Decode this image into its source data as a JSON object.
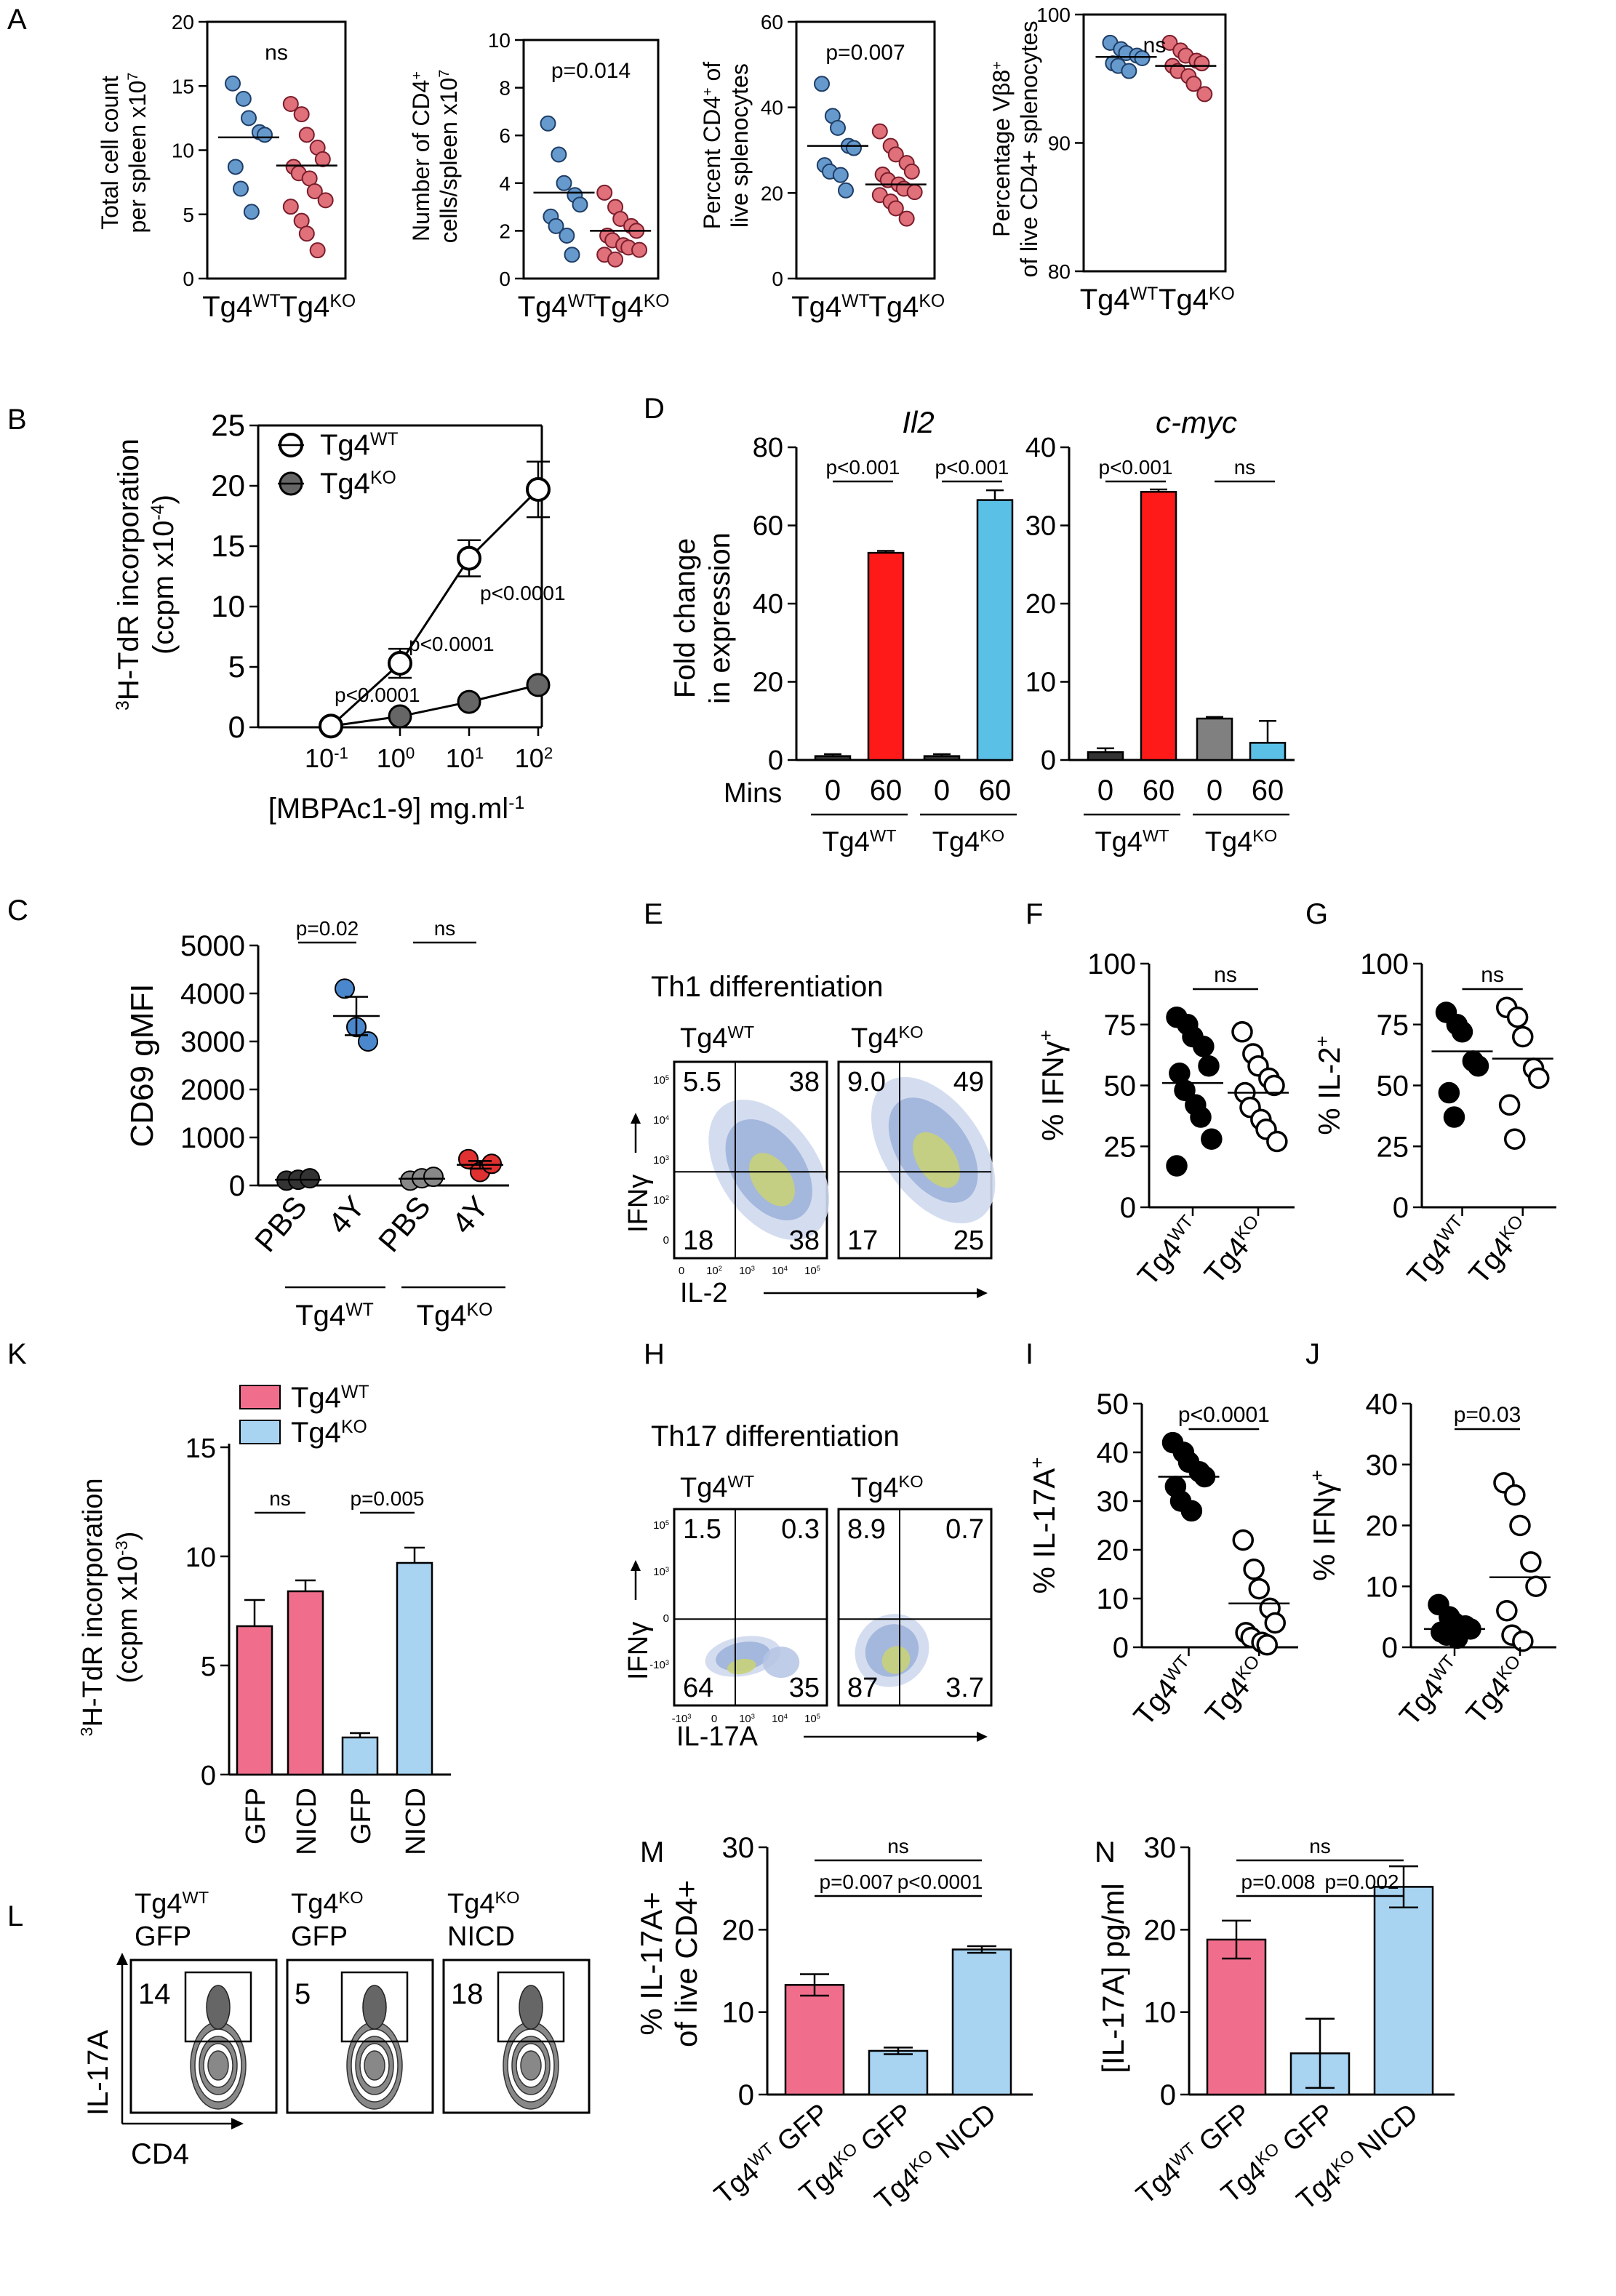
{
  "colors": {
    "wt_blue": "#6699cc",
    "ko_pink": "#e0707a",
    "red": "#ff1a1a",
    "cyan": "#5bc0e6",
    "gray": "#808080",
    "k_pink": "#f06e8c",
    "k_blue": "#a8d4f2",
    "scatter_blue": "#4a87cc",
    "scatter_red": "#e03030",
    "flow_bg": "#e7ecf6"
  },
  "panels": {
    "A": "A",
    "B": "B",
    "C": "C",
    "D": "D",
    "E": "E",
    "F": "F",
    "G": "G",
    "H": "H",
    "I": "I",
    "J": "J",
    "K": "K",
    "L": "L",
    "M": "M",
    "N": "N"
  },
  "groups": {
    "wt": "Tg4",
    "ko": "Tg4",
    "wt_sup": "WT",
    "ko_sup": "KO"
  },
  "panelA": {
    "y_ticks": [
      [
        "0",
        "5",
        "10",
        "15",
        "20"
      ],
      [
        "0",
        "2",
        "4",
        "6",
        "8",
        "10"
      ],
      [
        "0",
        "20",
        "40",
        "60"
      ],
      [
        "80",
        "90",
        "100"
      ]
    ],
    "stats": [
      "ns",
      "p=0.014",
      "p=0.007",
      "ns"
    ],
    "ylabels": [
      [
        "Total cell count",
        "per spleen x10"
      ],
      [
        "Number of CD4",
        "cells/spleen x10"
      ],
      [
        "Percent CD4",
        "of",
        "live splenocytes"
      ],
      [
        "Percentage Vβ8",
        "of live CD4+ splenocytes"
      ]
    ],
    "ylabel_sups": [
      "7",
      "+",
      "7",
      "+",
      "+"
    ],
    "exp7": "7"
  },
  "chart_data": [
    {
      "panel": "A1",
      "type": "scatter",
      "ylabel": "Total cell count per spleen x10^7",
      "ylim": [
        0,
        20
      ],
      "categories": [
        "Tg4WT",
        "Tg4KO"
      ],
      "series": [
        {
          "name": "Tg4WT",
          "values": [
            15.2,
            14.0,
            12.5,
            11.4,
            11.2,
            8.7,
            7.0,
            5.2
          ],
          "mean": 11.0
        },
        {
          "name": "Tg4KO",
          "values": [
            13.6,
            12.8,
            11.2,
            10.2,
            9.3,
            8.7,
            8.2,
            7.8,
            6.8,
            6.1,
            5.6,
            4.5,
            3.5,
            2.2
          ],
          "mean": 8.8
        }
      ],
      "annotation": "ns"
    },
    {
      "panel": "A2",
      "type": "scatter",
      "ylabel": "Number of CD4+ cells/spleen x10^7",
      "ylim": [
        0,
        10
      ],
      "categories": [
        "Tg4WT",
        "Tg4KO"
      ],
      "series": [
        {
          "name": "Tg4WT",
          "values": [
            6.5,
            5.2,
            4.0,
            3.5,
            3.1,
            2.6,
            2.2,
            1.8,
            1.0
          ],
          "mean": 3.6
        },
        {
          "name": "Tg4KO",
          "values": [
            3.6,
            3.0,
            2.5,
            2.2,
            2.0,
            1.8,
            1.6,
            1.4,
            1.3,
            1.2,
            1.0,
            0.8
          ],
          "mean": 2.0
        }
      ],
      "annotation": "p=0.014"
    },
    {
      "panel": "A3",
      "type": "scatter",
      "ylabel": "Percent CD4+ of live splenocytes",
      "ylim": [
        0,
        60
      ],
      "categories": [
        "Tg4WT",
        "Tg4KO"
      ],
      "series": [
        {
          "name": "Tg4WT",
          "values": [
            45.5,
            38.0,
            35.2,
            31.0,
            30.5,
            26.5,
            25.0,
            24.2,
            20.6
          ],
          "mean": 31.0
        },
        {
          "name": "Tg4KO",
          "values": [
            34.4,
            31.0,
            29.0,
            27.0,
            25.0,
            24.3,
            23.0,
            22.0,
            21.0,
            20.2,
            19.5,
            18.0,
            16.4,
            14.0
          ],
          "mean": 22.0
        }
      ],
      "annotation": "p=0.007"
    },
    {
      "panel": "A4",
      "type": "scatter",
      "ylabel": "Percentage Vb8+ of live CD4+ splenocytes",
      "ylim": [
        80,
        100
      ],
      "categories": [
        "Tg4WT",
        "Tg4KO"
      ],
      "series": [
        {
          "name": "Tg4WT",
          "values": [
            97.8,
            97.3,
            97.0,
            96.8,
            96.6,
            96.2,
            96.0,
            95.6
          ],
          "mean": 96.7
        },
        {
          "name": "Tg4KO",
          "values": [
            97.8,
            97.2,
            96.8,
            96.4,
            96.2,
            96.0,
            95.6,
            95.2,
            94.6,
            93.8
          ],
          "mean": 96.0
        }
      ],
      "annotation": "ns"
    },
    {
      "panel": "B",
      "type": "line",
      "xlabel": "[MBPAc1-9] mg.ml-1",
      "ylabel": "3H-TdR incorporation (ccpm x10-4)",
      "x": [
        0.1,
        1,
        10,
        100
      ],
      "ylim": [
        0,
        25
      ],
      "series": [
        {
          "name": "Tg4WT",
          "values": [
            0.1,
            5.3,
            14.0,
            19.7
          ],
          "errors": [
            0.1,
            1.2,
            1.5,
            2.3
          ]
        },
        {
          "name": "Tg4KO",
          "values": [
            0.1,
            0.9,
            2.1,
            3.5
          ],
          "errors": [
            0.1,
            0.3,
            0.3,
            0.4
          ]
        }
      ],
      "annotations": [
        "p<0.0001",
        "p<0.0001",
        "p<0.0001"
      ]
    },
    {
      "panel": "D-Il2",
      "type": "bar",
      "title": "Il2",
      "ylabel": "Fold change in expression",
      "ylim": [
        0,
        80
      ],
      "categories": [
        "Tg4WT 0",
        "Tg4WT 60",
        "Tg4KO 0",
        "Tg4KO 60"
      ],
      "values": [
        1,
        53,
        1,
        66.5
      ],
      "errors": [
        0.5,
        0.5,
        0.5,
        2.5
      ],
      "annotations": [
        "p<0.001",
        "p<0.001"
      ]
    },
    {
      "panel": "D-cmyc",
      "type": "bar",
      "title": "c-myc",
      "ylabel": "Fold change in expression",
      "ylim": [
        0,
        40
      ],
      "categories": [
        "Tg4WT 0",
        "Tg4WT 60",
        "Tg4KO 0",
        "Tg4KO 60"
      ],
      "values": [
        1,
        34.3,
        5.3,
        2.2
      ],
      "errors": [
        0.5,
        0.3,
        0.2,
        2.8
      ],
      "annotations": [
        "p<0.001",
        "ns"
      ]
    },
    {
      "panel": "C",
      "type": "scatter",
      "ylabel": "CD69 gMFI",
      "ylim": [
        0,
        5000
      ],
      "categories": [
        "Tg4WT PBS",
        "Tg4WT 4Y",
        "Tg4KO PBS",
        "Tg4KO 4Y"
      ],
      "series": [
        {
          "name": "Tg4WT PBS",
          "values": [
            100,
            120,
            150
          ],
          "mean": 120
        },
        {
          "name": "Tg4WT 4Y",
          "values": [
            4100,
            3300,
            3000
          ],
          "mean": 3530,
          "sem": 400
        },
        {
          "name": "Tg4KO PBS",
          "values": [
            100,
            150,
            180
          ],
          "mean": 140
        },
        {
          "name": "Tg4KO 4Y",
          "values": [
            550,
            280,
            450
          ],
          "mean": 430,
          "sem": 80
        }
      ],
      "annotations": [
        "p=0.02",
        "ns"
      ]
    },
    {
      "panel": "F",
      "type": "scatter",
      "ylabel": "% IFNg+",
      "ylim": [
        0,
        100
      ],
      "categories": [
        "Tg4WT",
        "Tg4KO"
      ],
      "series": [
        {
          "name": "Tg4WT",
          "values": [
            78,
            75,
            70,
            66,
            58,
            55,
            48,
            42,
            37,
            28,
            17
          ],
          "mean": 51
        },
        {
          "name": "Tg4KO",
          "values": [
            72,
            63,
            58,
            53,
            50,
            47,
            41,
            36,
            32,
            27
          ],
          "mean": 47
        }
      ],
      "annotation": "ns"
    },
    {
      "panel": "G",
      "type": "scatter",
      "ylabel": "% IL-2+",
      "ylim": [
        0,
        100
      ],
      "categories": [
        "Tg4WT",
        "Tg4KO"
      ],
      "series": [
        {
          "name": "Tg4WT",
          "values": [
            80,
            75,
            72,
            60,
            58,
            47,
            37
          ],
          "mean": 64
        },
        {
          "name": "Tg4KO",
          "values": [
            82,
            78,
            70,
            57,
            53,
            42,
            28
          ],
          "mean": 61
        }
      ],
      "annotation": "ns"
    },
    {
      "panel": "I",
      "type": "scatter",
      "ylabel": "% IL-17A+",
      "ylim": [
        0,
        50
      ],
      "categories": [
        "Tg4WT",
        "Tg4KO"
      ],
      "series": [
        {
          "name": "Tg4WT",
          "values": [
            42,
            40,
            38,
            36,
            35,
            33,
            30,
            28
          ],
          "mean": 35
        },
        {
          "name": "Tg4KO",
          "values": [
            22,
            16,
            12,
            8,
            5,
            3,
            2,
            1,
            0.5
          ],
          "mean": 9
        }
      ],
      "annotation": "p<0.0001"
    },
    {
      "panel": "J",
      "type": "scatter",
      "ylabel": "% IFNg+",
      "ylim": [
        0,
        40
      ],
      "categories": [
        "Tg4WT",
        "Tg4KO"
      ],
      "series": [
        {
          "name": "Tg4WT",
          "values": [
            7,
            5,
            4,
            3.5,
            3,
            2.5,
            2,
            1.5
          ],
          "mean": 3
        },
        {
          "name": "Tg4KO",
          "values": [
            27,
            25,
            20,
            14,
            10,
            6,
            2,
            1
          ],
          "mean": 11.5
        }
      ],
      "annotation": "p=0.03"
    },
    {
      "panel": "K",
      "type": "bar",
      "ylabel": "3H-TdR incorporation (ccpm x10-3)",
      "ylim": [
        0,
        15
      ],
      "categories": [
        "GFP",
        "NICD",
        "GFP",
        "NICD"
      ],
      "series_groups": [
        "Tg4WT",
        "Tg4WT",
        "Tg4KO",
        "Tg4KO"
      ],
      "values": [
        6.8,
        8.4,
        1.7,
        9.7
      ],
      "errors": [
        1.2,
        0.5,
        0.2,
        0.7
      ],
      "annotations": [
        "ns",
        "p=0.005"
      ]
    },
    {
      "panel": "M",
      "type": "bar",
      "ylabel": "% IL-17A+ of live CD4+",
      "ylim": [
        0,
        30
      ],
      "categories": [
        "Tg4WT GFP",
        "Tg4KO GFP",
        "Tg4KO NICD"
      ],
      "values": [
        13.3,
        5.3,
        17.6
      ],
      "errors": [
        1.3,
        0.4,
        0.4
      ],
      "annotations": [
        "p=0.007",
        "p<0.0001",
        "ns"
      ]
    },
    {
      "panel": "N",
      "type": "bar",
      "ylabel": "[IL-17A] pg/ml",
      "ylim": [
        0,
        30
      ],
      "categories": [
        "Tg4WT GFP",
        "Tg4KO GFP",
        "Tg4KO NICD"
      ],
      "values": [
        18.8,
        5.0,
        25.2
      ],
      "errors": [
        2.3,
        4.2,
        2.5
      ],
      "annotations": [
        "p=0.008",
        "p=0.002",
        "ns"
      ]
    }
  ],
  "panelB": {
    "x_ticks": [
      "10",
      "10",
      "10",
      "10"
    ],
    "x_exps": [
      "-1",
      "0",
      "1",
      "2"
    ],
    "y_ticks": [
      "0",
      "5",
      "10",
      "15",
      "20",
      "25"
    ],
    "xlabel": "[MBPAc1-9] mg.ml",
    "xlabel_sup": "-1",
    "ylabel_main": "H-TdR incorporation",
    "ylabel_pre": "3",
    "ylabel_sub": "(ccpm x10",
    "ylabel_sub_sup": "-4",
    "ylabel_sub_end": ")",
    "legend": [
      "Tg4",
      "Tg4"
    ],
    "stats": [
      "p<0.0001",
      "p<0.0001",
      "p<0.0001"
    ]
  },
  "panelC": {
    "y_ticks": [
      "0",
      "1000",
      "2000",
      "3000",
      "4000",
      "5000"
    ],
    "ylabel": "CD69 gMFI",
    "x_ticks": [
      "PBS",
      "4Y",
      "PBS",
      "4Y"
    ],
    "stats": [
      "p=0.02",
      "ns"
    ]
  },
  "panelD": {
    "titles": [
      "Il2",
      "c-myc"
    ],
    "y_ticks_il2": [
      "0",
      "20",
      "40",
      "60",
      "80"
    ],
    "y_ticks_myc": [
      "0",
      "10",
      "20",
      "30",
      "40"
    ],
    "ylabel": [
      "Fold change",
      "in expression"
    ],
    "mins_label": "Mins",
    "x_ticks": [
      "0",
      "60",
      "0",
      "60"
    ],
    "stats_il2": [
      "p<0.001",
      "p<0.001"
    ],
    "stats_myc": [
      "p<0.001",
      "ns"
    ]
  },
  "panelE": {
    "title": "Th1 differentiation",
    "quads_wt": [
      "5.5",
      "38",
      "18",
      "38"
    ],
    "quads_ko": [
      "9.0",
      "49",
      "17",
      "25"
    ],
    "yaxis": "IFNγ",
    "xaxis": "IL-2",
    "yticks": [
      "10",
      "10",
      "10",
      "10",
      "0"
    ],
    "ytick_exps": [
      "5",
      "4",
      "3",
      "2",
      ""
    ],
    "xticks": [
      "0",
      "10",
      "10",
      "10",
      "10"
    ],
    "xtick_exps": [
      "",
      "2",
      "3",
      "4",
      "5"
    ]
  },
  "panelF": {
    "y_ticks": [
      "0",
      "25",
      "50",
      "75",
      "100"
    ],
    "ylabel": "% IFNγ",
    "ylabel_sup": "+",
    "stat": "ns"
  },
  "panelG": {
    "y_ticks": [
      "0",
      "25",
      "50",
      "75",
      "100"
    ],
    "ylabel": "% IL-2",
    "ylabel_sup": "+",
    "stat": "ns"
  },
  "panelH": {
    "title": "Th17 differentiation",
    "quads_wt": [
      "1.5",
      "0.3",
      "64",
      "35"
    ],
    "quads_ko": [
      "8.9",
      "0.7",
      "87",
      "3.7"
    ],
    "yaxis": "IFNγ",
    "xaxis": "IL-17A",
    "yticks": [
      "10",
      "10",
      "0",
      "-10"
    ],
    "ytick_exps": [
      "5",
      "3",
      "",
      "3"
    ],
    "xticks": [
      "-10",
      "0",
      "10",
      "10",
      "10"
    ],
    "xtick_exps": [
      "3",
      "",
      "3",
      "4",
      "5"
    ]
  },
  "panelI": {
    "y_ticks": [
      "0",
      "10",
      "20",
      "30",
      "40",
      "50"
    ],
    "ylabel": "% IL-17A",
    "ylabel_sup": "+",
    "stat": "p<0.0001"
  },
  "panelJ": {
    "y_ticks": [
      "0",
      "10",
      "20",
      "30",
      "40"
    ],
    "ylabel": "% IFNγ",
    "ylabel_sup": "+",
    "stat": "p=0.03"
  },
  "panelK": {
    "legend": [
      "Tg4",
      "Tg4"
    ],
    "y_ticks": [
      "0",
      "5",
      "10",
      "15"
    ],
    "ylabel_main": "H-TdR incorporation",
    "ylabel_pre": "3",
    "ylabel_sub": "(ccpm x10",
    "ylabel_sub_sup": "-3",
    "ylabel_sub_end": ")",
    "x_ticks": [
      "GFP",
      "NICD",
      "GFP",
      "NICD"
    ],
    "stats": [
      "ns",
      "p=0.005"
    ]
  },
  "panelL": {
    "titles": [
      [
        "Tg4",
        "GFP"
      ],
      [
        "Tg4",
        "GFP"
      ],
      [
        "Tg4",
        "NICD"
      ]
    ],
    "values": [
      "14",
      "5",
      "18"
    ],
    "yaxis": "IL-17A",
    "xaxis": "CD4"
  },
  "panelM": {
    "y_ticks": [
      "0",
      "10",
      "20",
      "30"
    ],
    "ylabel": [
      "% IL-17A+",
      "of live CD4+"
    ],
    "x_ticks": [
      "GFP",
      "GFP",
      "NICD"
    ],
    "stats": [
      "p=0.007",
      "p<0.0001",
      "ns"
    ]
  },
  "panelN": {
    "y_ticks": [
      "0",
      "10",
      "20",
      "30"
    ],
    "ylabel": "[IL-17A] pg/ml",
    "x_ticks": [
      "GFP",
      "GFP",
      "NICD"
    ],
    "stats": [
      "p=0.008",
      "p=0.002",
      "ns"
    ]
  }
}
